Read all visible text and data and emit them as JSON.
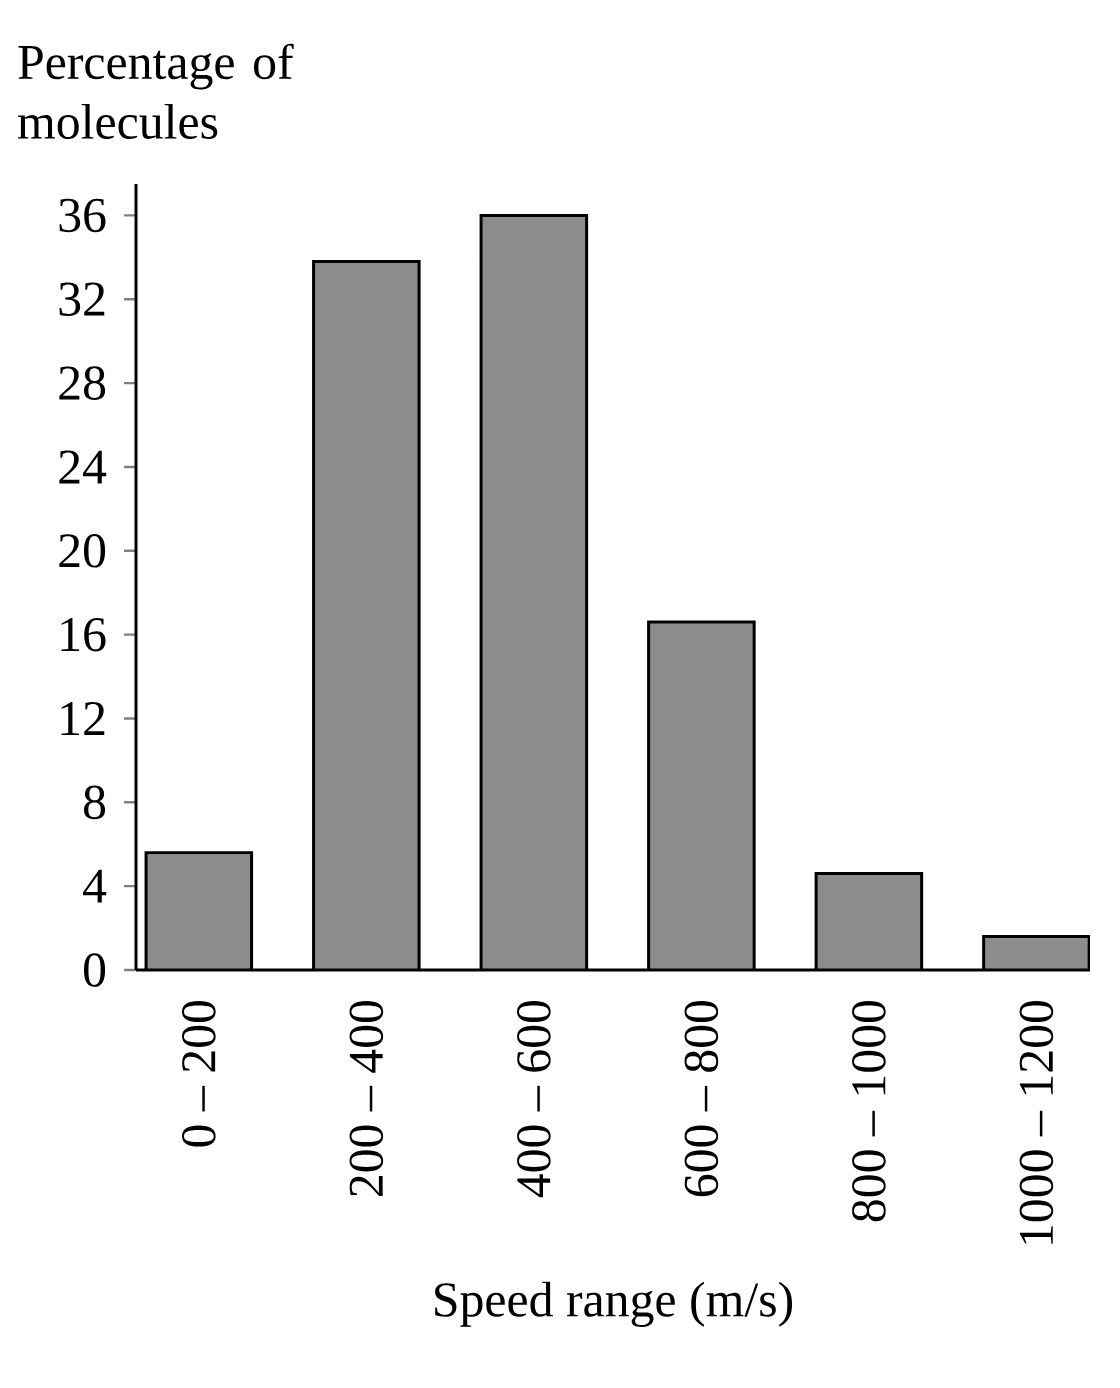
{
  "chart_data": {
    "type": "bar",
    "ylabel": "Percentage of molecules",
    "xlabel": "Speed range (m/s)",
    "categories": [
      "0 – 200",
      "200 – 400",
      "400 – 600",
      "600 – 800",
      "800 – 1000",
      "1000 – 1200"
    ],
    "values": [
      5.6,
      33.8,
      36,
      16.6,
      4.6,
      1.6
    ],
    "color": "#8c8c8c",
    "ylim": [
      0,
      37.5
    ],
    "yticks": [
      0,
      4,
      8,
      12,
      16,
      20,
      24,
      28,
      32,
      36
    ],
    "grid": false
  }
}
